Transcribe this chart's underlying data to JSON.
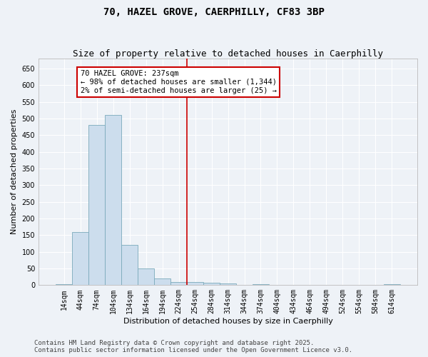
{
  "title": "70, HAZEL GROVE, CAERPHILLY, CF83 3BP",
  "subtitle": "Size of property relative to detached houses in Caerphilly",
  "xlabel": "Distribution of detached houses by size in Caerphilly",
  "ylabel": "Number of detached properties",
  "bar_color": "#ccdded",
  "bar_edge_color": "#7aaabb",
  "background_color": "#eef2f7",
  "grid_color": "#ffffff",
  "categories": [
    "14sqm",
    "44sqm",
    "74sqm",
    "104sqm",
    "134sqm",
    "164sqm",
    "194sqm",
    "224sqm",
    "254sqm",
    "284sqm",
    "314sqm",
    "344sqm",
    "374sqm",
    "404sqm",
    "434sqm",
    "464sqm",
    "494sqm",
    "524sqm",
    "554sqm",
    "584sqm",
    "614sqm"
  ],
  "values": [
    2,
    160,
    480,
    510,
    120,
    50,
    20,
    10,
    10,
    8,
    5,
    0,
    3,
    0,
    0,
    0,
    0,
    0,
    0,
    0,
    2
  ],
  "ylim": [
    0,
    680
  ],
  "yticks": [
    0,
    50,
    100,
    150,
    200,
    250,
    300,
    350,
    400,
    450,
    500,
    550,
    600,
    650
  ],
  "vline_x": 7.5,
  "vline_color": "#cc0000",
  "annotation_title": "70 HAZEL GROVE: 237sqm",
  "annotation_line1": "← 98% of detached houses are smaller (1,344)",
  "annotation_line2": "2% of semi-detached houses are larger (25) →",
  "annotation_box_color": "#ffffff",
  "annotation_box_edge": "#cc0000",
  "footer_line1": "Contains HM Land Registry data © Crown copyright and database right 2025.",
  "footer_line2": "Contains public sector information licensed under the Open Government Licence v3.0.",
  "title_fontsize": 10,
  "subtitle_fontsize": 9,
  "axis_label_fontsize": 8,
  "tick_fontsize": 7,
  "annotation_fontsize": 7.5,
  "footer_fontsize": 6.5
}
